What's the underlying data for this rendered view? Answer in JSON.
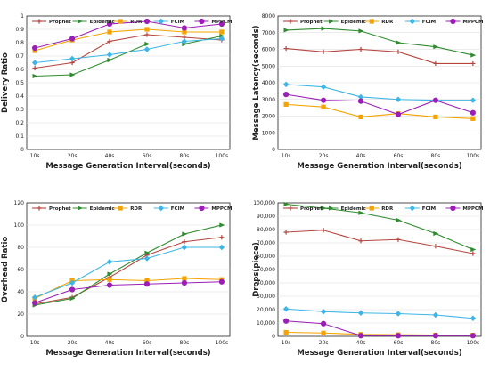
{
  "chart_data": [
    {
      "type": "line",
      "title": "",
      "xlabel": "Message Generation Interval(seconds)",
      "ylabel": "Delivery Ratio",
      "categories": [
        "10s",
        "20s",
        "40s",
        "60s",
        "80s",
        "100s"
      ],
      "ylim": [
        0,
        1
      ],
      "yticks": [
        "0",
        "0.1",
        "0.2",
        "0.3",
        "0.4",
        "0.5",
        "0.6",
        "0.7",
        "0.8",
        "0.9",
        "1"
      ],
      "grid": true,
      "legend": "top",
      "series": [
        {
          "name": "Prophet",
          "color": "#b5453e",
          "marker": "cross",
          "values": [
            0.61,
            0.65,
            0.81,
            0.86,
            0.84,
            0.82
          ]
        },
        {
          "name": "Epidemic",
          "color": "#2e8b2e",
          "marker": "triangle",
          "values": [
            0.55,
            0.56,
            0.67,
            0.79,
            0.79,
            0.85
          ]
        },
        {
          "name": "RDR",
          "color": "#f4a300",
          "marker": "square",
          "values": [
            0.74,
            0.82,
            0.88,
            0.9,
            0.88,
            0.88
          ]
        },
        {
          "name": "FCIM",
          "color": "#3db5e6",
          "marker": "diamond",
          "values": [
            0.65,
            0.68,
            0.71,
            0.75,
            0.81,
            0.83
          ]
        },
        {
          "name": "MPPCM",
          "color": "#9b1fb6",
          "marker": "circle",
          "values": [
            0.76,
            0.83,
            0.94,
            0.96,
            0.91,
            0.94
          ]
        }
      ]
    },
    {
      "type": "line",
      "title": "",
      "xlabel": "Message Generation Interval(seconds)",
      "ylabel": "Message Latency(seconds)",
      "categories": [
        "10s",
        "20s",
        "40s",
        "60s",
        "80s",
        "100s"
      ],
      "ylim": [
        0,
        8000
      ],
      "yticks": [
        "0",
        "1000",
        "2000",
        "3000",
        "4000",
        "5000",
        "6000",
        "7000",
        "8000"
      ],
      "grid": true,
      "legend": "top",
      "series": [
        {
          "name": "Prophet",
          "color": "#b5453e",
          "marker": "cross",
          "values": [
            6050,
            5850,
            6000,
            5850,
            5150,
            5150
          ]
        },
        {
          "name": "Epidemic",
          "color": "#2e8b2e",
          "marker": "triangle",
          "values": [
            7150,
            7250,
            7100,
            6400,
            6150,
            5650
          ]
        },
        {
          "name": "RDR",
          "color": "#f4a300",
          "marker": "square",
          "values": [
            2700,
            2550,
            1950,
            2150,
            1950,
            1850
          ]
        },
        {
          "name": "FCIM",
          "color": "#3db5e6",
          "marker": "diamond",
          "values": [
            3900,
            3750,
            3150,
            3000,
            2950,
            2950
          ]
        },
        {
          "name": "MPPCM",
          "color": "#9b1fb6",
          "marker": "circle",
          "values": [
            3300,
            2950,
            2900,
            2100,
            2950,
            2200
          ]
        }
      ]
    },
    {
      "type": "line",
      "title": "",
      "xlabel": "Message Generation Interval(seconds)",
      "ylabel": "Overhead Ratio",
      "categories": [
        "10s",
        "20s",
        "40s",
        "60s",
        "80s",
        "100s"
      ],
      "ylim": [
        0,
        120
      ],
      "yticks": [
        "0",
        "20",
        "40",
        "60",
        "80",
        "100",
        "120"
      ],
      "grid": true,
      "legend": "top",
      "series": [
        {
          "name": "Prophet",
          "color": "#b5453e",
          "marker": "cross",
          "values": [
            29,
            35,
            53,
            73,
            85,
            89
          ]
        },
        {
          "name": "Epidemic",
          "color": "#2e8b2e",
          "marker": "triangle",
          "values": [
            28,
            34,
            56,
            75,
            92,
            100
          ]
        },
        {
          "name": "RDR",
          "color": "#f4a300",
          "marker": "square",
          "values": [
            34,
            50,
            51,
            50,
            52,
            51
          ]
        },
        {
          "name": "FCIM",
          "color": "#3db5e6",
          "marker": "diamond",
          "values": [
            35,
            48,
            67,
            70,
            80,
            80
          ]
        },
        {
          "name": "MPPCM",
          "color": "#9b1fb6",
          "marker": "circle",
          "values": [
            30,
            42,
            46,
            47,
            48,
            49
          ]
        }
      ]
    },
    {
      "type": "line",
      "title": "",
      "xlabel": "Message Generation Interval(seconds)",
      "ylabel": "Drops(piece)",
      "categories": [
        "10s",
        "20s",
        "40s",
        "60s",
        "80s",
        "100s"
      ],
      "ylim": [
        0,
        100000
      ],
      "yticks": [
        "0",
        "10,000",
        "20,000",
        "30,000",
        "40,000",
        "50,000",
        "60,000",
        "70,000",
        "80,000",
        "90,000",
        "100,000"
      ],
      "grid": true,
      "legend": "top",
      "series": [
        {
          "name": "Prophet",
          "color": "#b5453e",
          "marker": "cross",
          "values": [
            78000,
            79500,
            71500,
            72500,
            67500,
            62000
          ]
        },
        {
          "name": "Epidemic",
          "color": "#2e8b2e",
          "marker": "triangle",
          "values": [
            99000,
            96000,
            92500,
            87000,
            77000,
            65000
          ]
        },
        {
          "name": "RDR",
          "color": "#f4a300",
          "marker": "square",
          "values": [
            3000,
            2500,
            1500,
            1200,
            1000,
            900
          ]
        },
        {
          "name": "FCIM",
          "color": "#3db5e6",
          "marker": "diamond",
          "values": [
            20500,
            18500,
            17500,
            17000,
            16000,
            13500
          ]
        },
        {
          "name": "MPPCM",
          "color": "#9b1fb6",
          "marker": "circle",
          "values": [
            11500,
            9500,
            500,
            500,
            500,
            500
          ]
        }
      ]
    }
  ]
}
